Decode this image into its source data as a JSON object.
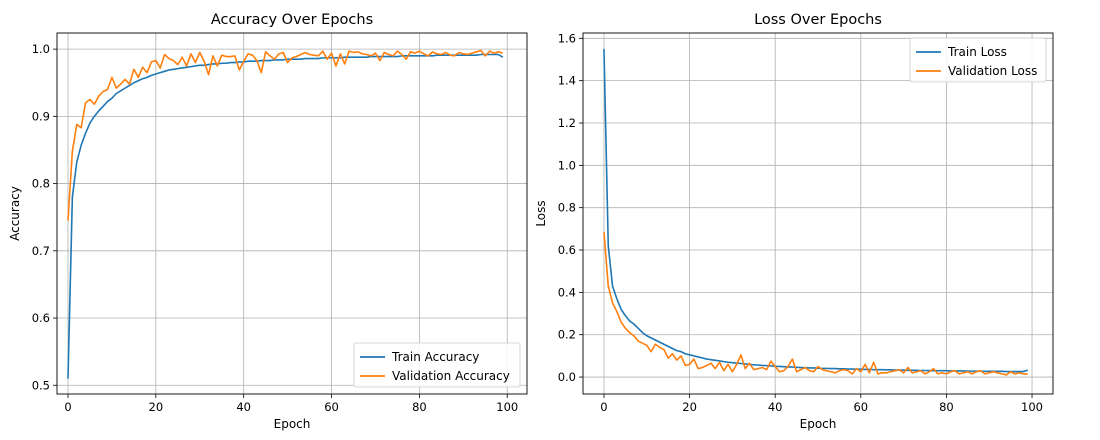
{
  "chart_data": [
    {
      "type": "line",
      "title": "Accuracy Over Epochs",
      "xlabel": "Epoch",
      "ylabel": "Accuracy",
      "xlim": [
        -2.5,
        104.5
      ],
      "ylim": [
        0.487,
        1.024
      ],
      "x_ticks": [
        0,
        20,
        40,
        60,
        80,
        100
      ],
      "y_ticks": [
        0.5,
        0.6,
        0.7,
        0.8,
        0.9,
        1.0
      ],
      "y_tick_labels": [
        "0.5",
        "0.6",
        "0.7",
        "0.8",
        "0.9",
        "1.0"
      ],
      "grid": true,
      "legend_position": "lower right",
      "series": [
        {
          "name": "Train Accuracy",
          "color": "#1f77b4",
          "values": [
            0.51,
            0.78,
            0.832,
            0.857,
            0.875,
            0.89,
            0.9,
            0.908,
            0.915,
            0.922,
            0.927,
            0.934,
            0.938,
            0.942,
            0.946,
            0.95,
            0.953,
            0.956,
            0.958,
            0.961,
            0.963,
            0.965,
            0.967,
            0.969,
            0.97,
            0.971,
            0.972,
            0.973,
            0.974,
            0.975,
            0.976,
            0.976,
            0.977,
            0.978,
            0.978,
            0.979,
            0.979,
            0.98,
            0.98,
            0.981,
            0.981,
            0.982,
            0.982,
            0.982,
            0.983,
            0.983,
            0.983,
            0.984,
            0.984,
            0.984,
            0.985,
            0.985,
            0.985,
            0.985,
            0.986,
            0.986,
            0.986,
            0.986,
            0.987,
            0.987,
            0.987,
            0.987,
            0.987,
            0.988,
            0.988,
            0.988,
            0.988,
            0.988,
            0.988,
            0.989,
            0.989,
            0.989,
            0.989,
            0.989,
            0.989,
            0.989,
            0.99,
            0.99,
            0.99,
            0.99,
            0.99,
            0.99,
            0.99,
            0.99,
            0.991,
            0.991,
            0.991,
            0.991,
            0.991,
            0.991,
            0.991,
            0.991,
            0.991,
            0.991,
            0.992,
            0.992,
            0.992,
            0.992,
            0.992,
            0.988
          ]
        },
        {
          "name": "Validation Accuracy",
          "color": "#ff7f0e",
          "values": [
            0.745,
            0.848,
            0.888,
            0.883,
            0.92,
            0.925,
            0.918,
            0.93,
            0.937,
            0.94,
            0.958,
            0.942,
            0.948,
            0.955,
            0.948,
            0.97,
            0.958,
            0.973,
            0.965,
            0.981,
            0.983,
            0.972,
            0.992,
            0.986,
            0.983,
            0.977,
            0.988,
            0.975,
            0.993,
            0.98,
            0.995,
            0.982,
            0.962,
            0.99,
            0.975,
            0.991,
            0.989,
            0.989,
            0.99,
            0.969,
            0.982,
            0.993,
            0.991,
            0.983,
            0.965,
            0.996,
            0.99,
            0.985,
            0.993,
            0.995,
            0.98,
            0.987,
            0.989,
            0.992,
            0.995,
            0.992,
            0.991,
            0.99,
            0.997,
            0.985,
            0.994,
            0.975,
            0.993,
            0.978,
            0.997,
            0.995,
            0.996,
            0.993,
            0.992,
            0.99,
            0.994,
            0.983,
            0.995,
            0.992,
            0.99,
            0.997,
            0.992,
            0.985,
            0.996,
            0.994,
            0.997,
            0.993,
            0.99,
            0.996,
            0.993,
            0.992,
            0.995,
            0.991,
            0.99,
            0.995,
            0.993,
            0.992,
            0.994,
            0.996,
            0.998,
            0.99,
            0.997,
            0.994,
            0.996,
            0.994
          ]
        }
      ]
    },
    {
      "type": "line",
      "title": "Loss Over Epochs",
      "xlabel": "Epoch",
      "ylabel": "Loss",
      "xlim": [
        -4.9,
        104.9
      ],
      "ylim": [
        -0.08,
        1.625
      ],
      "x_ticks": [
        0,
        20,
        40,
        60,
        80,
        100
      ],
      "y_ticks": [
        0.0,
        0.2,
        0.4,
        0.6,
        0.8,
        1.0,
        1.2,
        1.4,
        1.6
      ],
      "y_tick_labels": [
        "0.0",
        "0.2",
        "0.4",
        "0.6",
        "0.8",
        "1.0",
        "1.2",
        "1.4",
        "1.6"
      ],
      "grid": true,
      "legend_position": "upper right",
      "series": [
        {
          "name": "Train Loss",
          "color": "#1f77b4",
          "values": [
            1.55,
            0.62,
            0.43,
            0.37,
            0.32,
            0.29,
            0.265,
            0.25,
            0.23,
            0.21,
            0.195,
            0.185,
            0.175,
            0.165,
            0.155,
            0.145,
            0.135,
            0.125,
            0.12,
            0.11,
            0.105,
            0.1,
            0.095,
            0.09,
            0.085,
            0.082,
            0.079,
            0.076,
            0.073,
            0.07,
            0.068,
            0.066,
            0.064,
            0.062,
            0.06,
            0.058,
            0.057,
            0.055,
            0.054,
            0.053,
            0.051,
            0.05,
            0.049,
            0.048,
            0.047,
            0.046,
            0.045,
            0.044,
            0.043,
            0.043,
            0.042,
            0.041,
            0.041,
            0.04,
            0.04,
            0.039,
            0.039,
            0.038,
            0.038,
            0.037,
            0.037,
            0.036,
            0.036,
            0.035,
            0.035,
            0.035,
            0.034,
            0.034,
            0.033,
            0.033,
            0.033,
            0.032,
            0.032,
            0.032,
            0.031,
            0.031,
            0.031,
            0.03,
            0.03,
            0.03,
            0.03,
            0.029,
            0.029,
            0.029,
            0.029,
            0.028,
            0.028,
            0.028,
            0.028,
            0.027,
            0.027,
            0.027,
            0.027,
            0.027,
            0.026,
            0.026,
            0.026,
            0.026,
            0.026,
            0.033
          ]
        },
        {
          "name": "Validation Loss",
          "color": "#ff7f0e",
          "values": [
            0.685,
            0.43,
            0.35,
            0.31,
            0.26,
            0.23,
            0.21,
            0.195,
            0.17,
            0.16,
            0.15,
            0.12,
            0.155,
            0.14,
            0.13,
            0.09,
            0.11,
            0.08,
            0.1,
            0.055,
            0.06,
            0.085,
            0.04,
            0.045,
            0.055,
            0.065,
            0.04,
            0.07,
            0.03,
            0.06,
            0.025,
            0.06,
            0.105,
            0.04,
            0.065,
            0.035,
            0.04,
            0.045,
            0.035,
            0.075,
            0.05,
            0.025,
            0.03,
            0.05,
            0.085,
            0.025,
            0.035,
            0.045,
            0.03,
            0.025,
            0.05,
            0.035,
            0.03,
            0.025,
            0.02,
            0.03,
            0.035,
            0.03,
            0.015,
            0.04,
            0.025,
            0.06,
            0.02,
            0.07,
            0.015,
            0.02,
            0.02,
            0.025,
            0.03,
            0.035,
            0.02,
            0.045,
            0.02,
            0.025,
            0.03,
            0.015,
            0.025,
            0.04,
            0.015,
            0.02,
            0.015,
            0.025,
            0.03,
            0.015,
            0.02,
            0.025,
            0.015,
            0.025,
            0.03,
            0.015,
            0.02,
            0.025,
            0.02,
            0.015,
            0.01,
            0.025,
            0.015,
            0.02,
            0.015,
            0.015
          ]
        }
      ]
    }
  ]
}
